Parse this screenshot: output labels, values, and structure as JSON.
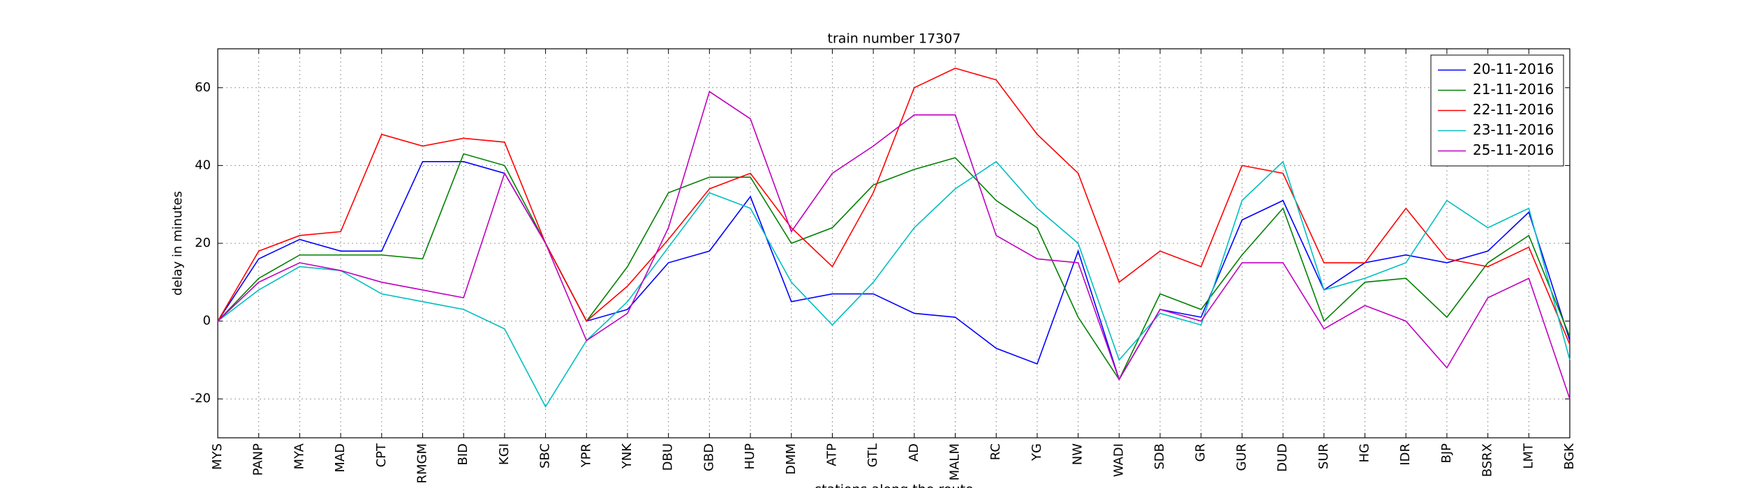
{
  "chart_data": {
    "type": "line",
    "title": "train number 17307",
    "x_label": "stations along the route",
    "y_label": "delay in minutes",
    "categories": [
      "MYS",
      "PANP",
      "MYA",
      "MAD",
      "CPT",
      "RMGM",
      "BID",
      "KGI",
      "SBC",
      "YPR",
      "YNK",
      "DBU",
      "GBD",
      "HUP",
      "DMM",
      "ATP",
      "GTL",
      "AD",
      "MALM",
      "RC",
      "YG",
      "NW",
      "WADI",
      "SDB",
      "GR",
      "GUR",
      "DUD",
      "SUR",
      "HG",
      "IDR",
      "BJP",
      "BSRX",
      "LMT",
      "BGK"
    ],
    "series": [
      {
        "name": "20-11-2016",
        "color": "#0000ff",
        "values": [
          0,
          16,
          21,
          18,
          18,
          41,
          41,
          38,
          20,
          0,
          3,
          15,
          18,
          32,
          5,
          7,
          7,
          2,
          1,
          -7,
          -11,
          18,
          -15,
          3,
          1,
          26,
          31,
          8,
          15,
          17,
          15,
          18,
          28,
          -5
        ]
      },
      {
        "name": "21-11-2016",
        "color": "#008000",
        "values": [
          0,
          11,
          17,
          17,
          17,
          16,
          43,
          40,
          20,
          0,
          14,
          33,
          37,
          37,
          20,
          24,
          35,
          39,
          42,
          31,
          24,
          1,
          -15,
          7,
          3,
          17,
          29,
          0,
          10,
          11,
          1,
          15,
          22,
          -4
        ]
      },
      {
        "name": "22-11-2016",
        "color": "#ff0000",
        "values": [
          0,
          18,
          22,
          23,
          48,
          45,
          47,
          46,
          20,
          0,
          9,
          21,
          34,
          38,
          24,
          14,
          33,
          60,
          65,
          62,
          48,
          38,
          10,
          18,
          14,
          40,
          38,
          15,
          15,
          29,
          16,
          14,
          19,
          -6
        ]
      },
      {
        "name": "23-11-2016",
        "color": "#00bfbf",
        "values": [
          0,
          8,
          14,
          13,
          7,
          5,
          3,
          -2,
          -22,
          -5,
          5,
          19,
          33,
          29,
          10,
          -1,
          10,
          24,
          34,
          41,
          29,
          20,
          -10,
          2,
          -1,
          31,
          41,
          8,
          11,
          15,
          31,
          24,
          29,
          -10
        ]
      },
      {
        "name": "25-11-2016",
        "color": "#bf00bf",
        "values": [
          0,
          10,
          15,
          13,
          10,
          8,
          6,
          38,
          20,
          -5,
          2,
          24,
          59,
          52,
          23,
          38,
          45,
          53,
          53,
          22,
          16,
          15,
          -15,
          3,
          0,
          15,
          15,
          -2,
          4,
          0,
          -12,
          6,
          11,
          -20
        ]
      }
    ],
    "ylim": [
      -30,
      70
    ],
    "yticks": [
      -20,
      0,
      20,
      40,
      60
    ],
    "grid": true,
    "legend": "upper right"
  }
}
